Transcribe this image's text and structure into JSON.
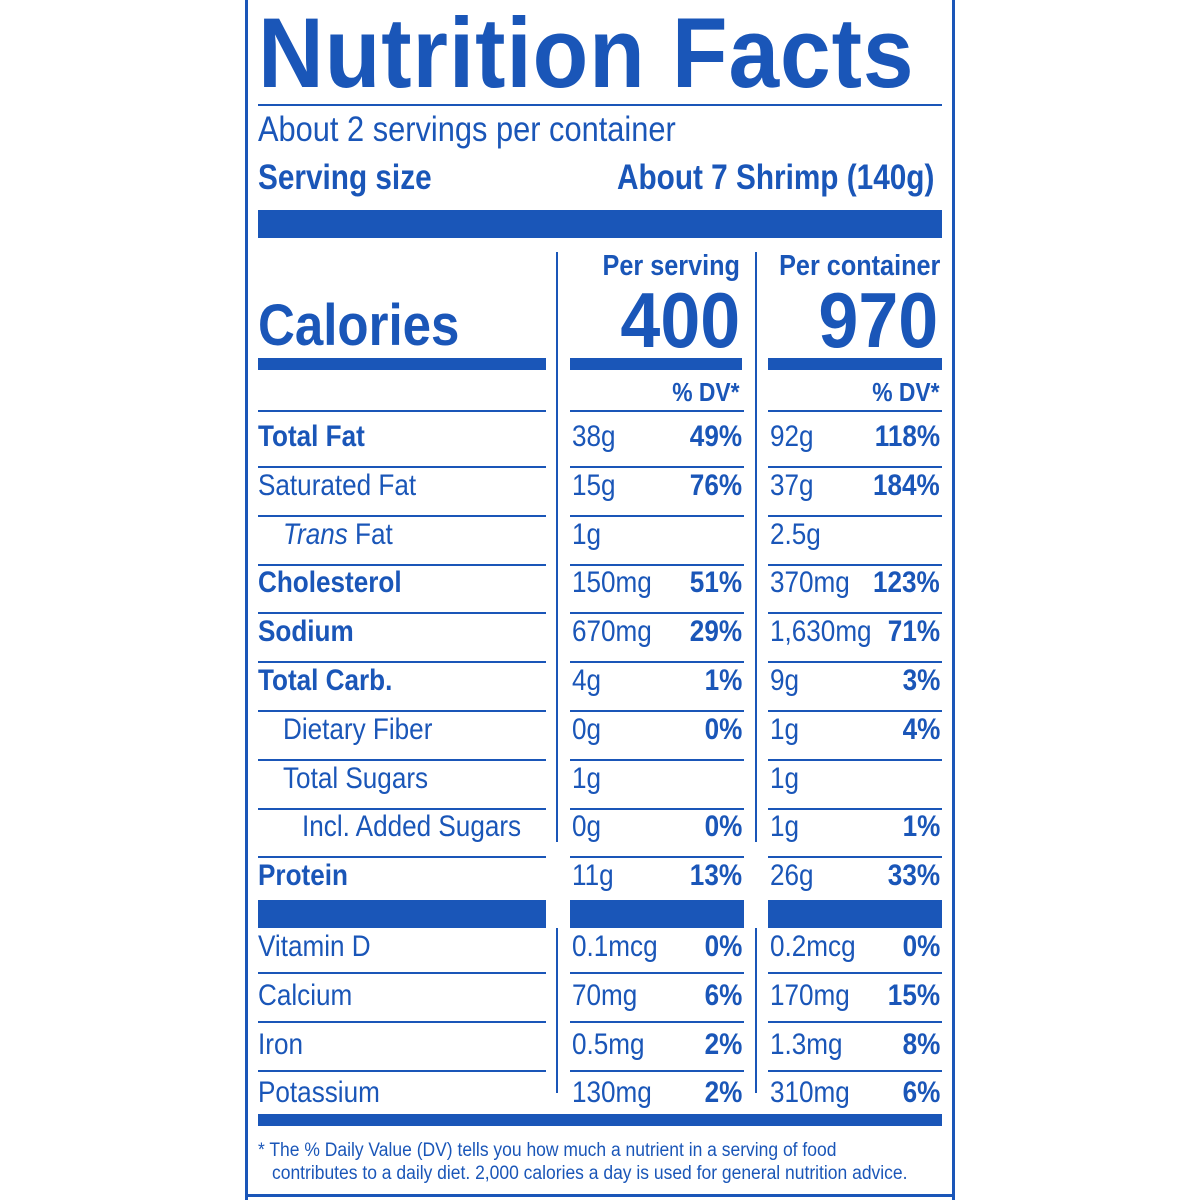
{
  "title": "Nutrition Facts",
  "servings_per_container": "About 2 servings per container",
  "serving_size_label": "Serving size",
  "serving_size_value": "About 7 Shrimp (140g)",
  "col_headers": {
    "serving": "Per serving",
    "container": "Per container"
  },
  "calories": {
    "label": "Calories",
    "serving": "400",
    "container": "970"
  },
  "dv_header": "% DV*",
  "nutrients": [
    {
      "label": "Total Fat",
      "style": "bold",
      "s_amt": "38g",
      "s_pct": "49%",
      "c_amt": "92g",
      "c_pct": "118%"
    },
    {
      "label": "Saturated Fat",
      "style": "indent0",
      "s_amt": "15g",
      "s_pct": "76%",
      "c_amt": "37g",
      "c_pct": "184%"
    },
    {
      "label_italic": "Trans",
      "label": " Fat",
      "style": "indent1",
      "s_amt": "1g",
      "s_pct": "",
      "c_amt": "2.5g",
      "c_pct": ""
    },
    {
      "label": "Cholesterol",
      "style": "bold",
      "s_amt": "150mg",
      "s_pct": "51%",
      "c_amt": "370mg",
      "c_pct": "123%"
    },
    {
      "label": "Sodium",
      "style": "bold",
      "s_amt": "670mg",
      "s_pct": "29%",
      "c_amt": "1,630mg",
      "c_pct": "71%"
    },
    {
      "label": "Total Carb.",
      "style": "bold",
      "s_amt": "4g",
      "s_pct": "1%",
      "c_amt": "9g",
      "c_pct": "3%"
    },
    {
      "label": "Dietary Fiber",
      "style": "indent1",
      "s_amt": "0g",
      "s_pct": "0%",
      "c_amt": "1g",
      "c_pct": "4%"
    },
    {
      "label": "Total Sugars",
      "style": "indent1",
      "s_amt": "1g",
      "s_pct": "",
      "c_amt": "1g",
      "c_pct": ""
    },
    {
      "label": "Incl. Added Sugars",
      "style": "indent2",
      "s_amt": "0g",
      "s_pct": "0%",
      "c_amt": "1g",
      "c_pct": "1%"
    },
    {
      "label": "Protein",
      "style": "bold",
      "s_amt": "11g",
      "s_pct": "13%",
      "c_amt": "26g",
      "c_pct": "33%"
    }
  ],
  "vitamins": [
    {
      "label": "Vitamin D",
      "s_amt": "0.1mcg",
      "s_pct": "0%",
      "c_amt": "0.2mcg",
      "c_pct": "0%"
    },
    {
      "label": "Calcium",
      "s_amt": "70mg",
      "s_pct": "6%",
      "c_amt": "170mg",
      "c_pct": "15%"
    },
    {
      "label": "Iron",
      "s_amt": "0.5mg",
      "s_pct": "2%",
      "c_amt": "1.3mg",
      "c_pct": "8%"
    },
    {
      "label": "Potassium",
      "s_amt": "130mg",
      "s_pct": "2%",
      "c_amt": "310mg",
      "c_pct": "6%"
    }
  ],
  "footnote": {
    "line1": "* The % Daily Value (DV) tells you how much a nutrient in a serving of food",
    "line2": "contributes to a daily diet. 2,000 calories a day is used for general nutrition advice."
  },
  "colors": {
    "ink": "#1a56b8",
    "background": "#ffffff"
  }
}
